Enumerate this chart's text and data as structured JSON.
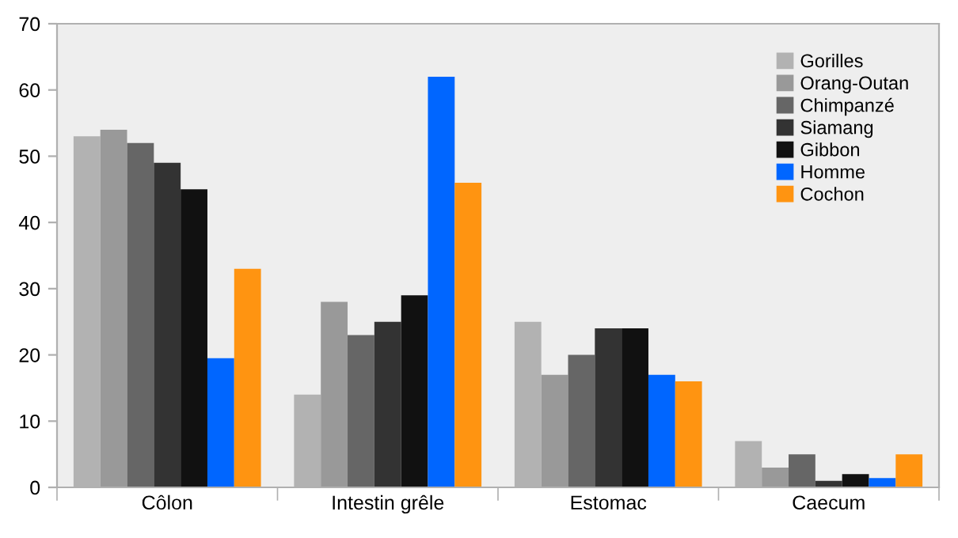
{
  "chart_data": {
    "type": "bar",
    "categories": [
      "Côlon",
      "Intestin grêle",
      "Estomac",
      "Caecum"
    ],
    "series": [
      {
        "name": "Gorilles",
        "color": "#b2b2b2",
        "values": [
          53,
          14,
          25,
          7
        ]
      },
      {
        "name": "Orang-Outan",
        "color": "#999999",
        "values": [
          54,
          28,
          17,
          3
        ]
      },
      {
        "name": "Chimpanzé",
        "color": "#666666",
        "values": [
          52,
          23,
          20,
          5
        ]
      },
      {
        "name": "Siamang",
        "color": "#333333",
        "values": [
          49,
          25,
          24,
          1
        ]
      },
      {
        "name": "Gibbon",
        "color": "#111111",
        "values": [
          45,
          29,
          24,
          2
        ]
      },
      {
        "name": "Homme",
        "color": "#0066ff",
        "values": [
          19.5,
          62,
          17,
          1.4
        ]
      },
      {
        "name": "Cochon",
        "color": "#ff9411",
        "values": [
          33,
          46,
          16,
          5
        ]
      }
    ],
    "ylim": [
      0,
      70
    ],
    "yticks": [
      0,
      10,
      20,
      30,
      40,
      50,
      60,
      70
    ],
    "grid": false,
    "legend": "top right"
  }
}
